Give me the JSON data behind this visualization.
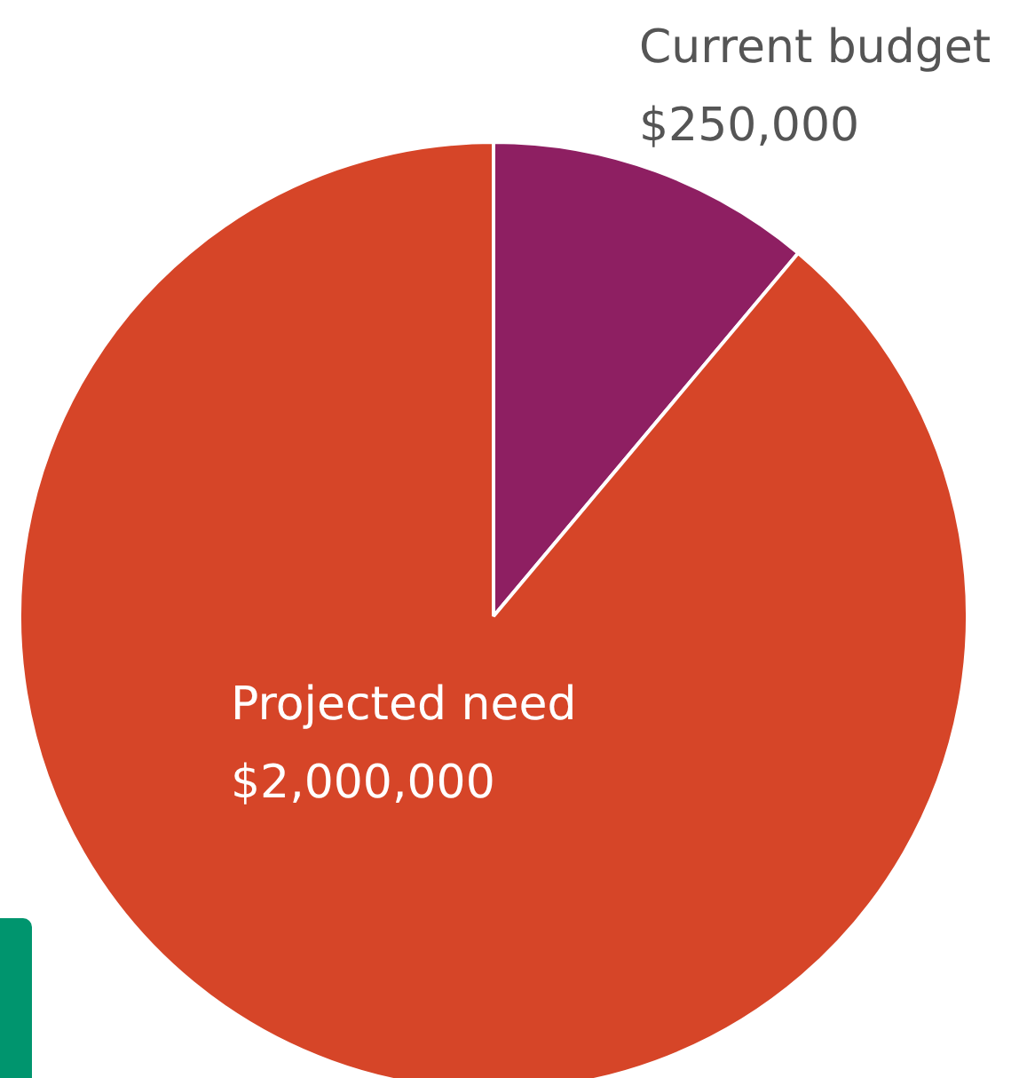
{
  "chart_data": {
    "type": "pie",
    "categories": [
      "Current budget",
      "Projected need"
    ],
    "values": [
      250000,
      2000000
    ],
    "value_labels": [
      "$250,000",
      "$2,000,000"
    ],
    "colors": [
      "#8e1f62",
      "#d64528"
    ],
    "legend": false
  }
}
